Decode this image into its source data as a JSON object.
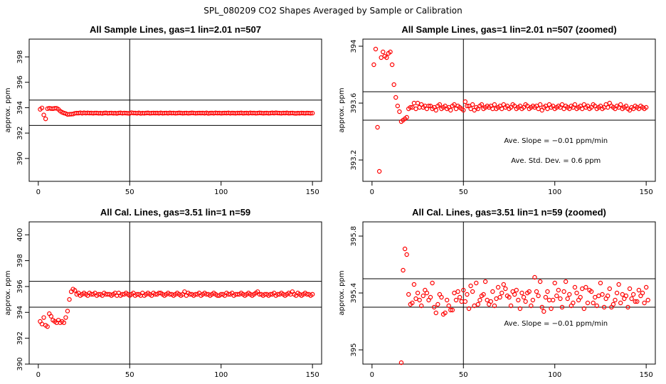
{
  "title": "SPL_080209  CO2 Shapes Averaged by Sample or Calibration",
  "colors": {
    "points": "#ff0000",
    "lines": "#000000",
    "frame": "#000000",
    "background": "#ffffff"
  },
  "chart_data": [
    {
      "type": "scatter",
      "title": "All Sample Lines, gas=1 lin=2.01 n=507",
      "ylabel": "approx. ppm",
      "xlim": [
        -5,
        155
      ],
      "ylim": [
        388.2,
        399.4
      ],
      "xticks": [
        0,
        50,
        100,
        150
      ],
      "yticks": [
        390,
        392,
        394,
        396,
        398
      ],
      "vline": 50,
      "hlines": [
        392.6,
        394.6
      ],
      "annotations": [],
      "x_start": 1,
      "x_step": 1,
      "y": [
        393.87,
        393.98,
        393.43,
        393.12,
        393.92,
        393.96,
        393.93,
        393.92,
        393.95,
        393.96,
        393.87,
        393.73,
        393.64,
        393.58,
        393.54,
        393.47,
        393.48,
        393.49,
        393.5,
        393.56,
        393.57,
        393.57,
        393.6,
        393.56,
        393.6,
        393.57,
        393.59,
        393.57,
        393.58,
        393.56,
        393.58,
        393.58,
        393.56,
        393.57,
        393.55,
        393.58,
        393.59,
        393.56,
        393.57,
        393.58,
        393.56,
        393.57,
        393.55,
        393.58,
        393.59,
        393.56,
        393.58,
        393.57,
        393.56,
        393.55,
        393.61,
        393.58,
        393.58,
        393.56,
        393.59,
        393.55,
        393.57,
        393.56,
        393.58,
        393.59,
        393.56,
        393.57,
        393.58,
        393.57,
        393.58,
        393.56,
        393.59,
        393.56,
        393.57,
        393.58,
        393.56,
        393.59,
        393.57,
        393.58,
        393.56,
        393.57,
        393.59,
        393.58,
        393.56,
        393.57,
        393.58,
        393.56,
        393.57,
        393.59,
        393.58,
        393.56,
        393.57,
        393.58,
        393.57,
        393.58,
        393.56,
        393.59,
        393.55,
        393.57,
        393.58,
        393.56,
        393.59,
        393.57,
        393.58,
        393.56,
        393.57,
        393.58,
        393.57,
        393.59,
        393.56,
        393.58,
        393.57,
        393.56,
        393.58,
        393.57,
        393.59,
        393.56,
        393.57,
        393.58,
        393.56,
        393.59,
        393.57,
        393.58,
        393.56,
        393.57,
        393.59,
        393.58,
        393.56,
        393.57,
        393.58,
        393.56,
        393.57,
        393.59,
        393.57,
        393.6,
        393.58,
        393.57,
        393.56,
        393.58,
        393.57,
        393.59,
        393.56,
        393.57,
        393.58,
        393.56,
        393.55,
        393.57,
        393.56,
        393.58,
        393.57,
        393.56,
        393.58,
        393.57,
        393.56,
        393.57
      ]
    },
    {
      "type": "scatter",
      "title": "All Sample Lines, gas=1 lin=2.01 n=507 (zoomed)",
      "ylabel": "approx. ppm",
      "xlim": [
        -5,
        155
      ],
      "ylim": [
        393.05,
        394.05
      ],
      "xticks": [
        0,
        50,
        100,
        150
      ],
      "yticks": [
        393.2,
        393.6,
        394.0
      ],
      "vline": 50,
      "hlines": [
        393.48,
        393.68
      ],
      "annotations": [
        "Ave. Slope =  −0.01  ppm/min",
        "Ave. Std. Dev. =  0.6  ppm"
      ],
      "x_start": 1,
      "x_step": 1,
      "y": [
        393.87,
        393.98,
        393.43,
        393.12,
        393.92,
        393.96,
        393.93,
        393.92,
        393.95,
        393.96,
        393.87,
        393.73,
        393.64,
        393.58,
        393.54,
        393.47,
        393.48,
        393.49,
        393.5,
        393.56,
        393.57,
        393.57,
        393.6,
        393.56,
        393.6,
        393.57,
        393.59,
        393.57,
        393.58,
        393.56,
        393.58,
        393.58,
        393.56,
        393.57,
        393.55,
        393.58,
        393.59,
        393.56,
        393.57,
        393.58,
        393.56,
        393.57,
        393.55,
        393.58,
        393.59,
        393.56,
        393.58,
        393.57,
        393.56,
        393.55,
        393.61,
        393.58,
        393.58,
        393.56,
        393.59,
        393.55,
        393.57,
        393.56,
        393.58,
        393.59,
        393.56,
        393.57,
        393.58,
        393.57,
        393.58,
        393.56,
        393.59,
        393.56,
        393.57,
        393.58,
        393.56,
        393.59,
        393.57,
        393.58,
        393.56,
        393.57,
        393.59,
        393.58,
        393.56,
        393.57,
        393.58,
        393.56,
        393.57,
        393.59,
        393.58,
        393.56,
        393.57,
        393.58,
        393.57,
        393.58,
        393.56,
        393.59,
        393.55,
        393.57,
        393.58,
        393.56,
        393.59,
        393.57,
        393.58,
        393.56,
        393.57,
        393.58,
        393.57,
        393.59,
        393.56,
        393.58,
        393.57,
        393.56,
        393.58,
        393.57,
        393.59,
        393.56,
        393.57,
        393.58,
        393.56,
        393.59,
        393.57,
        393.58,
        393.56,
        393.57,
        393.59,
        393.58,
        393.56,
        393.57,
        393.58,
        393.56,
        393.57,
        393.59,
        393.57,
        393.6,
        393.58,
        393.57,
        393.56,
        393.58,
        393.57,
        393.59,
        393.56,
        393.57,
        393.58,
        393.56,
        393.55,
        393.57,
        393.56,
        393.58,
        393.57,
        393.56,
        393.58,
        393.57,
        393.56,
        393.57
      ]
    },
    {
      "type": "scatter",
      "title": "All Cal. Lines, gas=3.51 lin=1 n=59",
      "ylabel": "approx. ppm",
      "xlim": [
        -5,
        155
      ],
      "ylim": [
        390,
        401
      ],
      "xticks": [
        0,
        50,
        100,
        150
      ],
      "yticks": [
        390,
        392,
        394,
        396,
        398,
        400
      ],
      "vline": 50,
      "hlines": [
        394.4,
        396.4
      ],
      "annotations": [],
      "x_start": 1,
      "x_step": 1,
      "y": [
        393.3,
        393.1,
        393.6,
        393.0,
        392.9,
        393.9,
        393.7,
        393.4,
        393.3,
        393.2,
        393.4,
        393.2,
        393.3,
        393.2,
        393.6,
        394.1,
        395.0,
        395.6,
        395.8,
        395.7,
        395.4,
        395.5,
        395.3,
        395.4,
        395.5,
        395.4,
        395.3,
        395.5,
        395.4,
        395.4,
        395.5,
        395.3,
        395.4,
        395.4,
        395.3,
        395.5,
        395.4,
        395.4,
        395.4,
        395.3,
        395.4,
        395.5,
        395.3,
        395.5,
        395.3,
        395.4,
        395.4,
        395.5,
        395.4,
        395.3,
        395.4,
        395.5,
        395.3,
        395.4,
        395.4,
        395.3,
        395.5,
        395.3,
        395.4,
        395.5,
        395.4,
        395.3,
        395.5,
        395.4,
        395.4,
        395.5,
        395.5,
        395.4,
        395.3,
        395.4,
        395.5,
        395.4,
        395.4,
        395.3,
        395.4,
        395.5,
        395.4,
        395.3,
        395.4,
        395.6,
        395.3,
        395.5,
        395.4,
        395.4,
        395.3,
        395.4,
        395.4,
        395.5,
        395.3,
        395.4,
        395.5,
        395.4,
        395.4,
        395.3,
        395.4,
        395.5,
        395.4,
        395.3,
        395.3,
        395.4,
        395.4,
        395.3,
        395.5,
        395.4,
        395.4,
        395.5,
        395.3,
        395.4,
        395.4,
        395.4,
        395.5,
        395.4,
        395.3,
        395.4,
        395.5,
        395.4,
        395.3,
        395.4,
        395.5,
        395.6,
        395.4,
        395.4,
        395.3,
        395.4,
        395.4,
        395.3,
        395.4,
        395.4,
        395.5,
        395.3,
        395.4,
        395.4,
        395.5,
        395.4,
        395.3,
        395.4,
        395.5,
        395.4,
        395.6,
        395.4,
        395.3,
        395.5,
        395.4,
        395.3,
        395.4,
        395.5,
        395.4,
        395.4,
        395.3,
        395.4
      ]
    },
    {
      "type": "scatter",
      "title": "All Cal. Lines, gas=3.51 lin=1 n=59 (zoomed)",
      "ylabel": "approx. ppm",
      "xlim": [
        -5,
        155
      ],
      "ylim": [
        394.9,
        395.9
      ],
      "xticks": [
        0,
        50,
        100,
        150
      ],
      "yticks": [
        395.0,
        395.4,
        395.8
      ],
      "vline": 50,
      "hlines": [
        395.3,
        395.5
      ],
      "annotations": [
        "Ave. Slope =  −0.01  ppm/min"
      ],
      "x_start": 16,
      "x_step": 1,
      "y": [
        394.91,
        395.56,
        395.71,
        395.67,
        395.39,
        395.32,
        395.33,
        395.46,
        395.36,
        395.4,
        395.35,
        395.31,
        395.38,
        395.42,
        395.4,
        395.35,
        395.37,
        395.47,
        395.3,
        395.26,
        395.32,
        395.39,
        395.37,
        395.25,
        395.26,
        395.35,
        395.31,
        395.28,
        395.28,
        395.4,
        395.35,
        395.41,
        395.37,
        395.34,
        395.42,
        395.34,
        395.39,
        395.29,
        395.45,
        395.41,
        395.31,
        395.47,
        395.32,
        395.35,
        395.38,
        395.39,
        395.48,
        395.35,
        395.32,
        395.34,
        395.41,
        395.31,
        395.36,
        395.44,
        395.37,
        395.4,
        395.46,
        395.43,
        395.38,
        395.37,
        395.31,
        395.41,
        395.39,
        395.42,
        395.35,
        395.29,
        395.4,
        395.37,
        395.34,
        395.4,
        395.41,
        395.31,
        395.35,
        395.51,
        395.41,
        395.38,
        395.48,
        395.3,
        395.27,
        395.37,
        395.41,
        395.35,
        395.29,
        395.35,
        395.47,
        395.38,
        395.42,
        395.36,
        395.3,
        395.41,
        395.48,
        395.36,
        395.39,
        395.31,
        395.33,
        395.44,
        395.4,
        395.35,
        395.37,
        395.43,
        395.29,
        395.44,
        395.33,
        395.42,
        395.41,
        395.33,
        395.37,
        395.31,
        395.38,
        395.47,
        395.39,
        395.3,
        395.36,
        395.38,
        395.43,
        395.3,
        395.32,
        395.35,
        395.4,
        395.46,
        395.33,
        395.39,
        395.36,
        395.38,
        395.3,
        395.43,
        395.36,
        395.39,
        395.34,
        395.34,
        395.42,
        395.38,
        395.4,
        395.33,
        395.44,
        395.35
      ]
    }
  ]
}
